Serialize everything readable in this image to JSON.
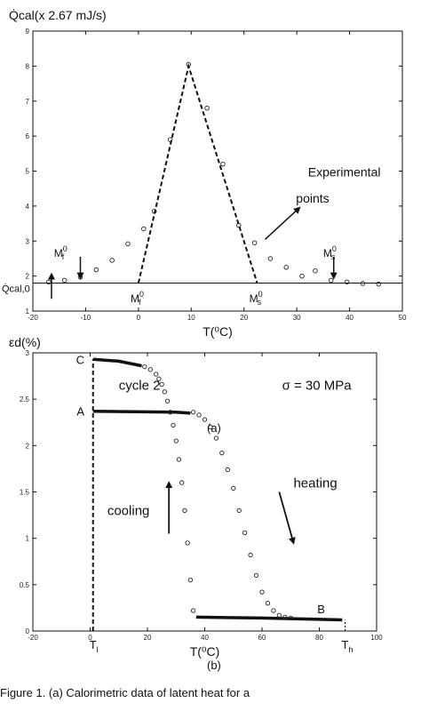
{
  "chart_data": [
    {
      "type": "scatter",
      "panel_label": "(a)",
      "ylabel": "Q̇cal(x 2.67 mJ/s)",
      "xlabel": "T(⁰C)",
      "xlim": [
        -20,
        50
      ],
      "ylim": [
        1,
        9
      ],
      "xticks": [
        -20,
        -10,
        0,
        10,
        20,
        30,
        40,
        50
      ],
      "yticks": [
        1,
        2,
        3,
        4,
        5,
        6,
        7,
        8,
        9
      ],
      "baseline_label": "Q̇cal,0",
      "baseline_value": 1.8,
      "series": [
        {
          "marker": "circle",
          "points": [
            [
              -17,
              1.83
            ],
            [
              -14,
              1.88
            ],
            [
              -11,
              1.97
            ],
            [
              -8,
              2.18
            ],
            [
              -5,
              2.45
            ],
            [
              -2,
              2.92
            ],
            [
              1,
              3.35
            ],
            [
              3,
              3.85
            ],
            [
              6,
              5.9
            ],
            [
              9.5,
              8.05
            ],
            [
              13,
              6.8
            ],
            [
              16,
              5.2
            ],
            [
              19,
              3.45
            ],
            [
              22,
              2.95
            ],
            [
              25,
              2.5
            ],
            [
              28,
              2.25
            ],
            [
              31,
              2.0
            ],
            [
              33.5,
              2.15
            ],
            [
              36.5,
              1.88
            ],
            [
              39.5,
              1.83
            ],
            [
              42.5,
              1.79
            ],
            [
              45.5,
              1.77
            ]
          ]
        }
      ],
      "dashed_peak": [
        [
          0,
          1.8
        ],
        [
          9.5,
          8.0
        ],
        [
          22.5,
          1.8
        ]
      ],
      "annotations": [
        {
          "text": "Experimental",
          "x": 39,
          "y": 4.85
        },
        {
          "text": "points",
          "x": 33,
          "y": 4.1
        },
        {
          "text": "M",
          "sup": "0",
          "sub": "f",
          "x": -16,
          "y": 2.55
        },
        {
          "text": "M",
          "sup": "0",
          "sub": "f",
          "x": -1.5,
          "y": 1.25
        },
        {
          "text": "M",
          "sup": "0",
          "sub": "s",
          "x": 21,
          "y": 1.25
        },
        {
          "text": "M",
          "sup": "0",
          "sub": "s",
          "x": 35,
          "y": 2.55
        }
      ],
      "arrows": [
        {
          "from": [
            -11,
            2.55
          ],
          "to": [
            -11,
            1.95
          ]
        },
        {
          "from": [
            37,
            2.55
          ],
          "to": [
            37,
            1.95
          ]
        },
        {
          "from": [
            24,
            3.05
          ],
          "to": [
            30.5,
            3.95
          ]
        }
      ]
    },
    {
      "type": "scatter",
      "panel_label": "(b)",
      "ylabel": "εd(%)",
      "xlabel": "T(⁰C)",
      "xlim": [
        -20,
        100
      ],
      "ylim": [
        0,
        3
      ],
      "xticks": [
        -20,
        0,
        20,
        40,
        60,
        80,
        100
      ],
      "yticks": [
        0,
        0.5,
        1,
        1.5,
        2,
        2.5,
        3
      ],
      "xtick_labels_special": [
        {
          "text": "T",
          "sub": "l",
          "x": 1
        },
        {
          "text": "T",
          "sub": "h",
          "x": 89
        }
      ],
      "stress_label": "σ = 30 MPa",
      "cycle_label": "cycle 2",
      "point_labels": [
        {
          "text": "C",
          "x": -2,
          "y": 2.93
        },
        {
          "text": "A",
          "x": -2,
          "y": 2.37
        },
        {
          "text": "B",
          "x": 82,
          "y": 0.24
        }
      ],
      "series": [
        {
          "name": "heating",
          "marker": "circle",
          "points": [
            [
              36,
              2.36
            ],
            [
              38,
              2.33
            ],
            [
              40,
              2.28
            ],
            [
              42,
              2.2
            ],
            [
              44,
              2.08
            ],
            [
              46,
              1.92
            ],
            [
              48,
              1.74
            ],
            [
              50,
              1.54
            ],
            [
              52,
              1.3
            ],
            [
              54,
              1.06
            ],
            [
              56,
              0.82
            ],
            [
              58,
              0.6
            ],
            [
              60,
              0.42
            ],
            [
              62,
              0.3
            ],
            [
              64,
              0.22
            ],
            [
              66,
              0.17
            ],
            [
              68,
              0.15
            ],
            [
              70,
              0.14
            ]
          ]
        },
        {
          "name": "cooling",
          "marker": "circle",
          "points": [
            [
              36,
              0.22
            ],
            [
              35,
              0.55
            ],
            [
              34,
              0.95
            ],
            [
              33,
              1.3
            ],
            [
              32,
              1.6
            ],
            [
              31,
              1.85
            ],
            [
              30,
              2.05
            ],
            [
              29,
              2.22
            ],
            [
              28,
              2.36
            ],
            [
              27,
              2.48
            ],
            [
              26,
              2.58
            ],
            [
              25,
              2.66
            ],
            [
              24,
              2.72
            ],
            [
              23,
              2.77
            ],
            [
              21,
              2.82
            ],
            [
              19,
              2.85
            ]
          ]
        }
      ],
      "lines": [
        {
          "points": [
            [
              1,
              2.37
            ],
            [
              30,
              2.36
            ],
            [
              35,
              2.35
            ]
          ]
        },
        {
          "points": [
            [
              1,
              2.93
            ],
            [
              10,
              2.91
            ],
            [
              18,
              2.86
            ]
          ]
        },
        {
          "points": [
            [
              37,
              0.15
            ],
            [
              60,
              0.14
            ],
            [
              88,
              0.12
            ]
          ]
        }
      ],
      "dashed_vertical": [
        [
          1,
          0
        ],
        [
          1,
          2.93
        ]
      ],
      "dashed_end": [
        [
          89,
          0
        ],
        [
          89,
          0.12
        ]
      ],
      "arrows": [
        {
          "label": "cooling",
          "from": [
            27.5,
            1.05
          ],
          "to": [
            27.5,
            1.6
          ]
        },
        {
          "label": "heating",
          "from": [
            66,
            1.5
          ],
          "to": [
            71,
            0.95
          ]
        }
      ]
    }
  ],
  "figure_labels": {
    "a": "(a)",
    "b": "(b)"
  },
  "caption": "Figure 1. (a) Calorimetric data of latent heat for a"
}
